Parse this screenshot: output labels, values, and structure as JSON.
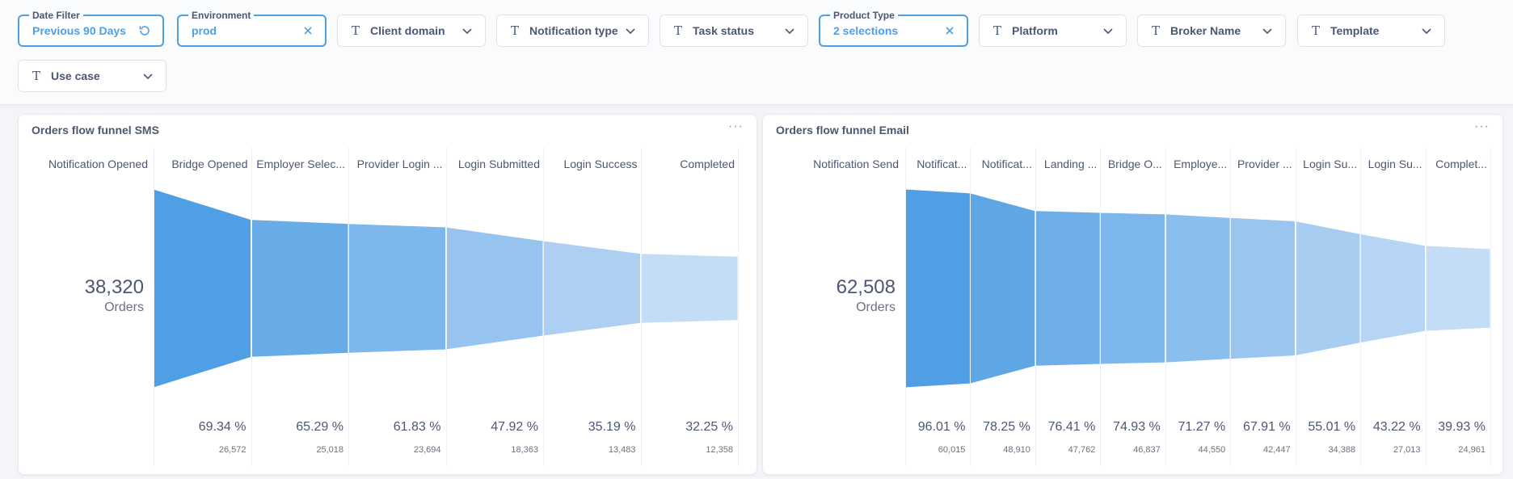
{
  "filters": [
    {
      "legend": "Date Filter",
      "value": "Previous 90 Days",
      "icon": "refresh-icon",
      "active": true
    },
    {
      "legend": "Environment",
      "value": "prod",
      "icon": "close-icon",
      "active": true
    },
    {
      "label": "Client domain",
      "icon": "chevron-down-icon"
    },
    {
      "label": "Notification type",
      "icon": "chevron-down-icon"
    },
    {
      "label": "Task status",
      "icon": "chevron-down-icon"
    },
    {
      "legend": "Product Type",
      "value": "2 selections",
      "icon": "close-icon",
      "active": true
    },
    {
      "label": "Platform",
      "icon": "chevron-down-icon"
    },
    {
      "label": "Broker Name",
      "icon": "chevron-down-icon"
    },
    {
      "label": "Template",
      "icon": "chevron-down-icon"
    },
    {
      "label": "Use case",
      "icon": "chevron-down-icon"
    }
  ],
  "cards": [
    {
      "title": "Orders flow funnel SMS",
      "menu": "···",
      "total": "38,320",
      "unit": "Orders",
      "first_step": "Notification Opened",
      "steps": [
        {
          "label": "Bridge Opened",
          "pct": "69.34 %",
          "count": "26,572",
          "value": 26572
        },
        {
          "label": "Employer Selec...",
          "pct": "65.29 %",
          "count": "25,018",
          "value": 25018
        },
        {
          "label": "Provider Login ...",
          "pct": "61.83 %",
          "count": "23,694",
          "value": 23694
        },
        {
          "label": "Login Submitted",
          "pct": "47.92 %",
          "count": "18,363",
          "value": 18363
        },
        {
          "label": "Login Success",
          "pct": "35.19 %",
          "count": "13,483",
          "value": 13483
        },
        {
          "label": "Completed",
          "pct": "32.25 %",
          "count": "12,358",
          "value": 12358
        }
      ]
    },
    {
      "title": "Orders flow funnel Email",
      "menu": "···",
      "total": "62,508",
      "unit": "Orders",
      "first_step": "Notification Send",
      "steps": [
        {
          "label": "Notificat...",
          "pct": "96.01 %",
          "count": "60,015",
          "value": 60015
        },
        {
          "label": "Notificat...",
          "pct": "78.25 %",
          "count": "48,910",
          "value": 48910
        },
        {
          "label": "Landing ...",
          "pct": "76.41 %",
          "count": "47,762",
          "value": 47762
        },
        {
          "label": "Bridge O...",
          "pct": "74.93 %",
          "count": "46,837",
          "value": 46837
        },
        {
          "label": "Employe...",
          "pct": "71.27 %",
          "count": "44,550",
          "value": 44550
        },
        {
          "label": "Provider ...",
          "pct": "67.91 %",
          "count": "42,447",
          "value": 42447
        },
        {
          "label": "Login Su...",
          "pct": "55.01 %",
          "count": "34,388",
          "value": 34388
        },
        {
          "label": "Login Su...",
          "pct": "43.22 %",
          "count": "27,013",
          "value": 27013
        },
        {
          "label": "Complet...",
          "pct": "39.93 %",
          "count": "24,961",
          "value": 24961
        }
      ]
    }
  ],
  "colors": {
    "accent": "#509ee3",
    "funnel_dark": "#509ee3",
    "funnel_light": "#c4ddf6"
  }
}
